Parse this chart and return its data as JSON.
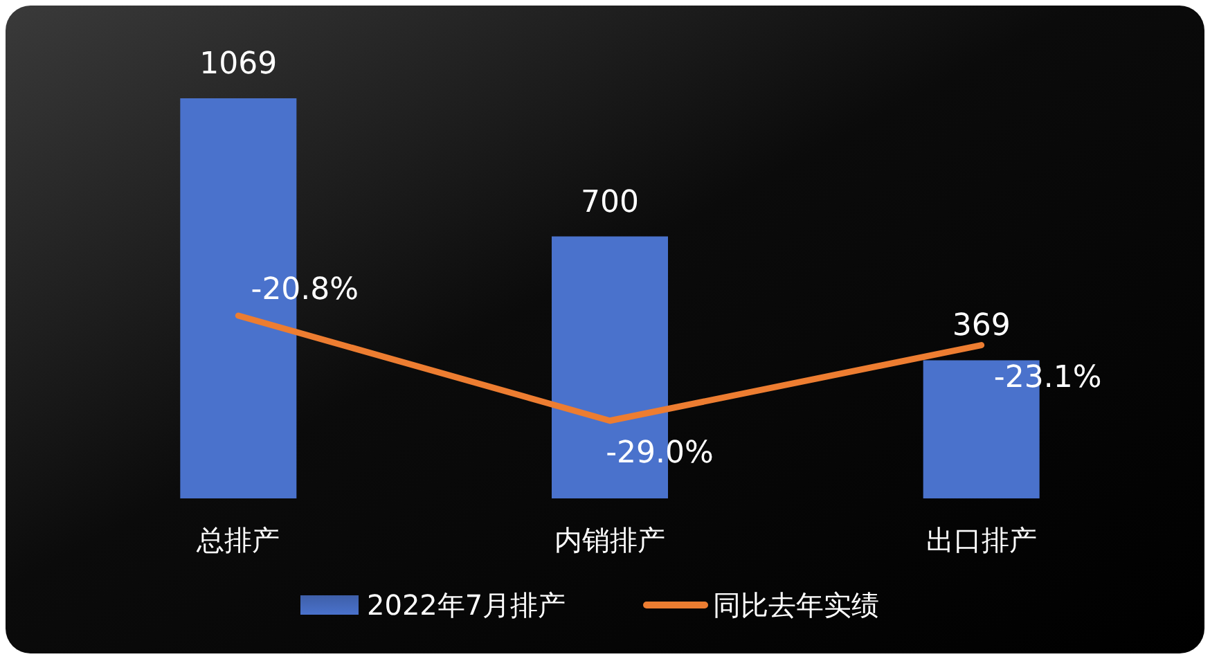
{
  "chart_data": {
    "type": "bar",
    "categories": [
      "总排产",
      "内销排产",
      "出口排产"
    ],
    "series": [
      {
        "name": "2022年7月排产",
        "color": "#4a72cc",
        "values": [
          1069,
          700,
          369
        ]
      },
      {
        "name": "同比去年实绩",
        "type": "line",
        "axis": "y2",
        "color": "#ed7d31",
        "values": [
          -20.8,
          -29.0,
          -23.1
        ],
        "value_labels": [
          "-20.8%",
          "-29.0%",
          "-23.1%"
        ]
      }
    ],
    "data_labels": true,
    "legend": "bottom",
    "grid": false,
    "tick_labels": "x",
    "marker": "none",
    "line_style": "solid"
  }
}
